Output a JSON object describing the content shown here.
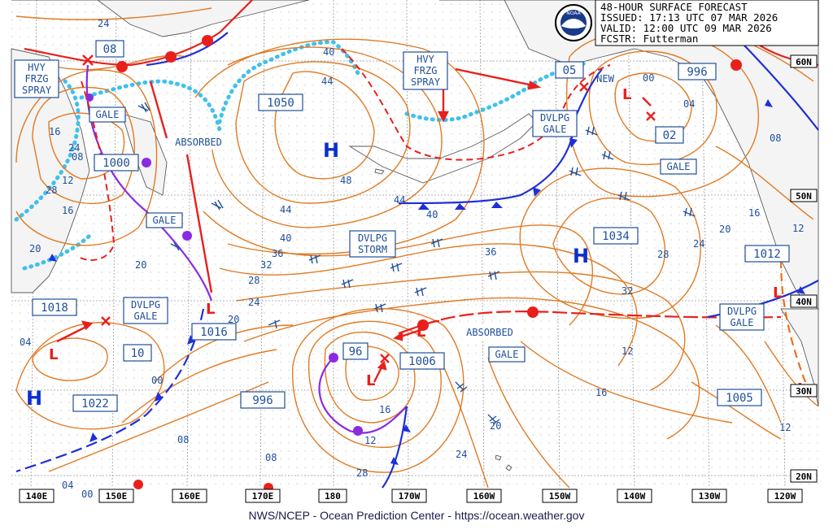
{
  "header": {
    "title": "48-HOUR SURFACE FORECAST",
    "issued": "ISSUED: 17:13 UTC 07 MAR 2026",
    "valid": "VALID:  12:00 UTC 09 MAR 2026",
    "forecaster": "FCSTR:  Futterman",
    "logo_text": "NOAA"
  },
  "footer": "NWS/NCEP - Ocean Prediction Center - https://ocean.weather.gov",
  "longitude_labels": [
    "140E",
    "150E",
    "160E",
    "170E",
    "180",
    "170W",
    "160W",
    "150W",
    "140W",
    "130W",
    "120W"
  ],
  "latitude_labels": [
    "60N",
    "50N",
    "40N",
    "30N",
    "20N"
  ],
  "pressure_centers": [
    {
      "type": "H",
      "value": "1050"
    },
    {
      "type": "H",
      "value": "1034"
    },
    {
      "type": "H",
      "value": "1022"
    },
    {
      "type": "L",
      "value": "1000"
    },
    {
      "type": "L",
      "value": "1018"
    },
    {
      "type": "L",
      "value": "10"
    },
    {
      "type": "L",
      "value": "1016"
    },
    {
      "type": "L",
      "value": "96"
    },
    {
      "type": "L",
      "value": "1006"
    },
    {
      "type": "L",
      "value": "996"
    },
    {
      "type": "L",
      "value": "02"
    },
    {
      "type": "L",
      "value": "1012"
    },
    {
      "type": "L",
      "value": "1005"
    },
    {
      "type": "L",
      "value": "08"
    },
    {
      "type": "L",
      "value": "05"
    },
    {
      "type": "L",
      "value": "996"
    }
  ],
  "warnings": [
    {
      "line1": "HVY",
      "line2": "FRZG",
      "line3": "SPRAY"
    },
    {
      "line1": "HVY",
      "line2": "FRZG",
      "line3": "SPRAY"
    },
    {
      "line1": "GALE"
    },
    {
      "line1": "GALE"
    },
    {
      "line1": "DVLPG",
      "line2": "GALE"
    },
    {
      "line1": "DVLPG",
      "line2": "STORM"
    },
    {
      "line1": "DVLPG",
      "line2": "GALE"
    },
    {
      "line1": "GALE"
    },
    {
      "line1": "GALE"
    },
    {
      "line1": "DVLPG",
      "line2": "GALE"
    }
  ],
  "annotations": [
    "ABSORBED",
    "ABSORBED",
    "NEW"
  ],
  "isobar_labels": [
    "24",
    "44",
    "40",
    "48",
    "44",
    "40",
    "44",
    "36",
    "32",
    "28",
    "24",
    "20",
    "40",
    "36",
    "32",
    "28",
    "24",
    "20",
    "16",
    "12",
    "08",
    "04",
    "00",
    "16",
    "20",
    "24",
    "28",
    "20",
    "16",
    "12",
    "08",
    "04",
    "00",
    "08",
    "12",
    "16",
    "20",
    "24",
    "28",
    "12",
    "16",
    "08",
    "04",
    "00",
    "12"
  ],
  "colors": {
    "isobar": "#e07a22",
    "cold_front": "#1e2fd8",
    "warm_front": "#e8201c",
    "occluded": "#8a2be2",
    "ice_edge": "#40c0ee",
    "grid": "#9a9a9a",
    "label": "#1f4f9a"
  }
}
